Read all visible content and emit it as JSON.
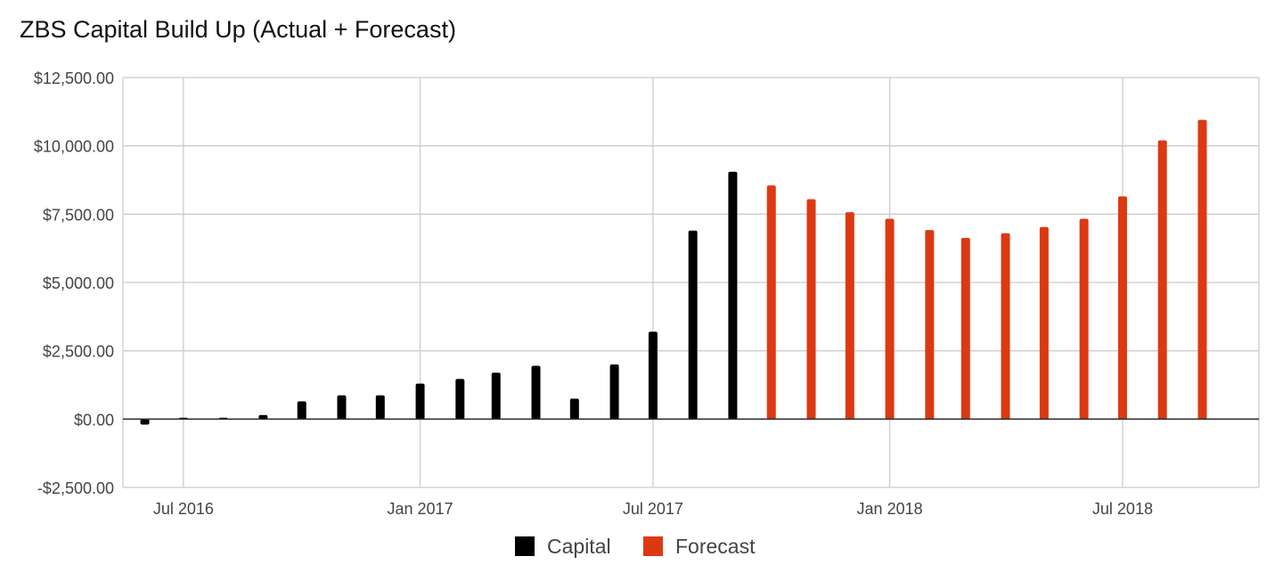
{
  "chart_data": {
    "type": "bar",
    "title": "ZBS Capital Build Up (Actual + Forecast)",
    "xlabel": "",
    "ylabel": "",
    "ylim": [
      -2500,
      12500
    ],
    "yticks": [
      -2500,
      0,
      2500,
      5000,
      7500,
      10000,
      12500
    ],
    "ytick_labels": [
      "-$2,500.00",
      "$0.00",
      "$2,500.00",
      "$5,000.00",
      "$7,500.00",
      "$10,000.00",
      "$12,500.00"
    ],
    "xlim": [
      "2016-05-15",
      "2018-10-15"
    ],
    "xticks": [
      "2016-07-01",
      "2017-01-01",
      "2017-07-01",
      "2018-01-01",
      "2018-07-01"
    ],
    "xtick_labels": [
      "Jul 2016",
      "Jan 2017",
      "Jul 2017",
      "Jan 2018",
      "Jul 2018"
    ],
    "grid": true,
    "legend_position": "bottom",
    "series": [
      {
        "name": "Capital",
        "color": "#000000",
        "x": [
          "2016-06-01",
          "2016-07-01",
          "2016-08-01",
          "2016-09-01",
          "2016-10-01",
          "2016-11-01",
          "2016-12-01",
          "2017-01-01",
          "2017-02-01",
          "2017-03-01",
          "2017-04-01",
          "2017-05-01",
          "2017-06-01",
          "2017-07-01",
          "2017-08-01",
          "2017-09-01"
        ],
        "values": [
          -200,
          50,
          50,
          150,
          650,
          870,
          870,
          1300,
          1470,
          1700,
          1950,
          750,
          2000,
          3200,
          6900,
          9050
        ]
      },
      {
        "name": "Forecast",
        "color": "#dc3912",
        "x": [
          "2017-10-01",
          "2017-11-01",
          "2017-12-01",
          "2018-01-01",
          "2018-02-01",
          "2018-03-01",
          "2018-04-01",
          "2018-05-01",
          "2018-06-01",
          "2018-07-01",
          "2018-08-01",
          "2018-09-01"
        ],
        "values": [
          8550,
          8050,
          7570,
          7330,
          6920,
          6630,
          6800,
          7030,
          7330,
          8150,
          10200,
          10950
        ]
      }
    ]
  }
}
